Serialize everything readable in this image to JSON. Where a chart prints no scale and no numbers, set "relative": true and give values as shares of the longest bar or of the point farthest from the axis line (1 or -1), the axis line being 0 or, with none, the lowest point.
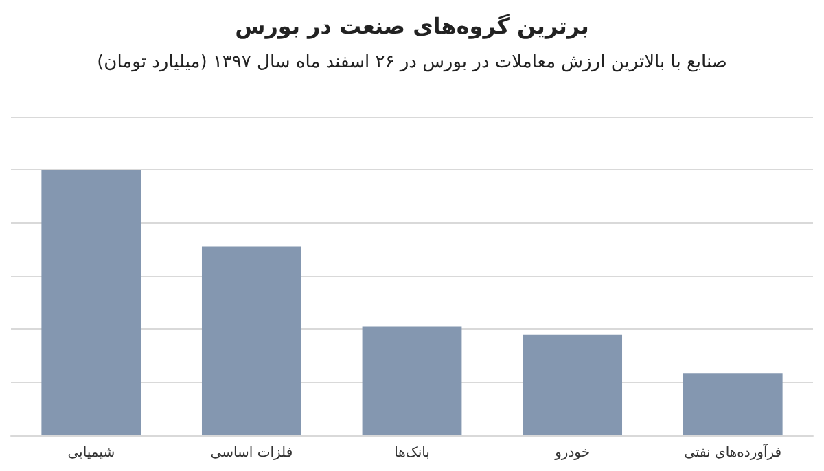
{
  "chart_data": {
    "type": "bar",
    "title": "برترین گروه‌های صنعت در بورس",
    "subtitle": "صنایع با بالاترین ارزش معاملات در بورس در ۲۶ اسفند ماه سال ۱۳۹۷ (میلیارد تومان)",
    "categories": [
      "شیمیایی",
      "فلزات اساسی",
      "بانک‌ها",
      "خودرو",
      "فرآورده‌های نفتی"
    ],
    "values": [
      1,
      0.71,
      0.41,
      0.378,
      0.235
    ],
    "color": "#8497b0",
    "relative": true,
    "grid": true
  }
}
